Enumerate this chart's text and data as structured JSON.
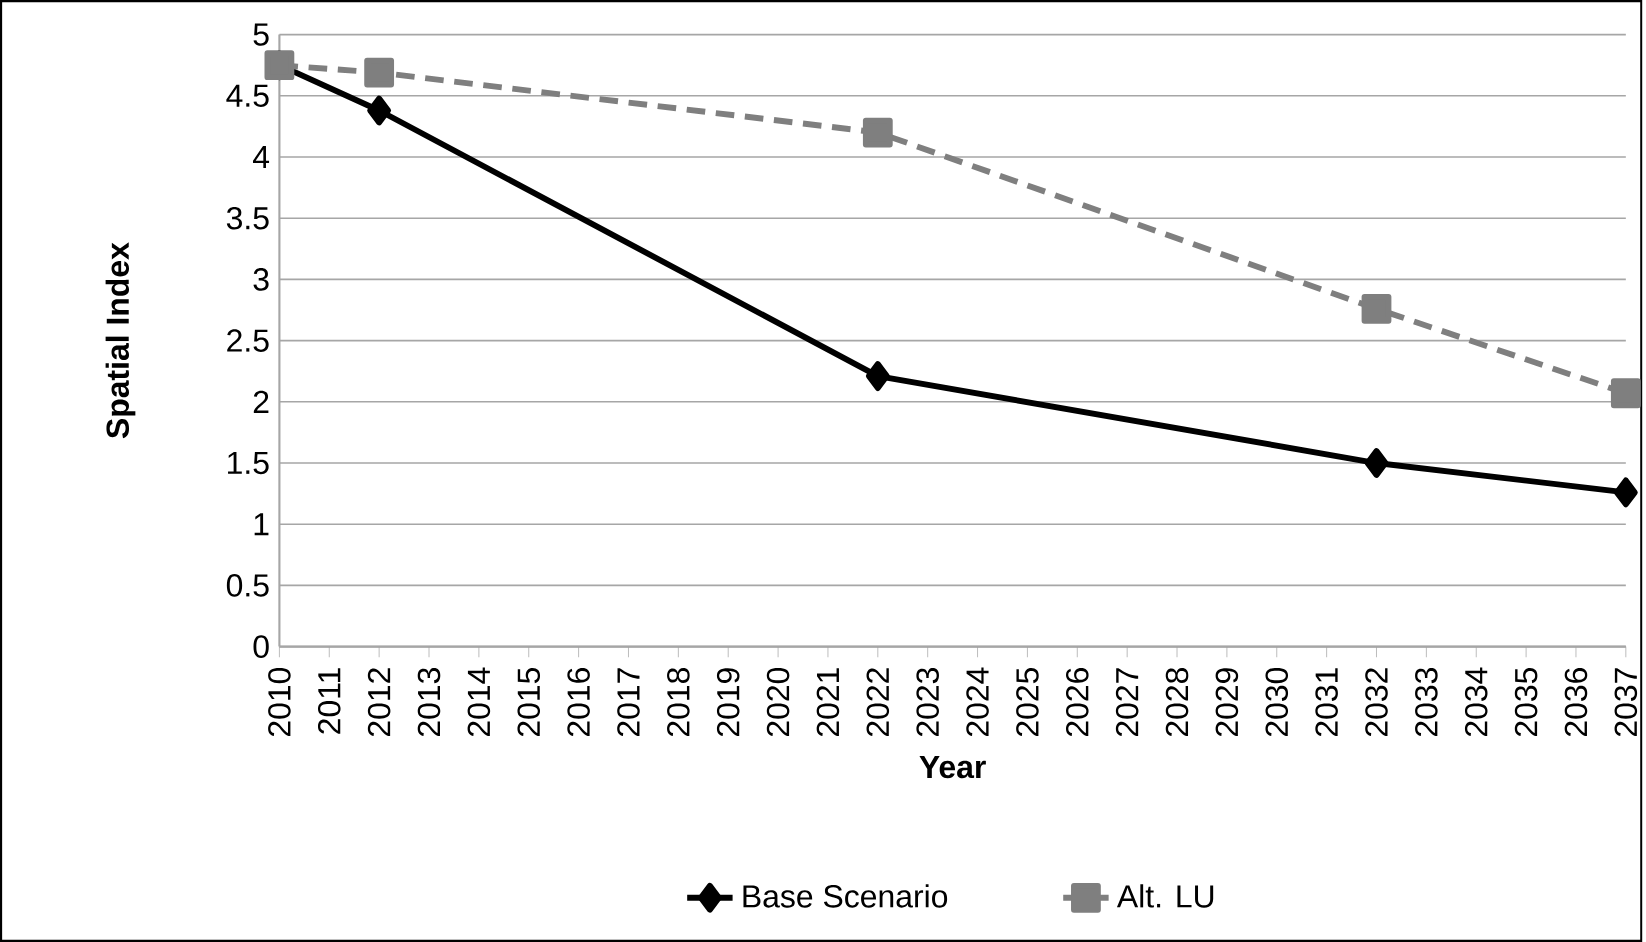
{
  "chart_data": {
    "type": "line",
    "xlabel": "Year",
    "ylabel": "Spatial Index",
    "xlim": [
      2010,
      2037
    ],
    "xticks": [
      2010,
      2011,
      2012,
      2013,
      2014,
      2015,
      2016,
      2017,
      2018,
      2019,
      2020,
      2021,
      2022,
      2023,
      2024,
      2025,
      2026,
      2027,
      2028,
      2029,
      2030,
      2031,
      2032,
      2033,
      2034,
      2035,
      2036,
      2037
    ],
    "ylim": [
      0,
      5
    ],
    "yticks": [
      0,
      0.5,
      1,
      1.5,
      2,
      2.5,
      3,
      3.5,
      4,
      4.5,
      5
    ],
    "grid": "y",
    "legend": "bottom",
    "series": [
      {
        "name": "Base Scenario",
        "color": "#000000",
        "marker": "diamond",
        "line_style": "solid",
        "x": [
          2010,
          2012,
          2022,
          2032,
          2037
        ],
        "values": [
          4.75,
          4.38,
          2.21,
          1.5,
          1.26
        ]
      },
      {
        "name": "Alt. LU",
        "color": "#7f7f7f",
        "marker": "square",
        "line_style": "dashed",
        "x": [
          2010,
          2012,
          2022,
          2032,
          2037
        ],
        "values": [
          4.75,
          4.69,
          4.2,
          2.76,
          2.07
        ]
      }
    ]
  }
}
